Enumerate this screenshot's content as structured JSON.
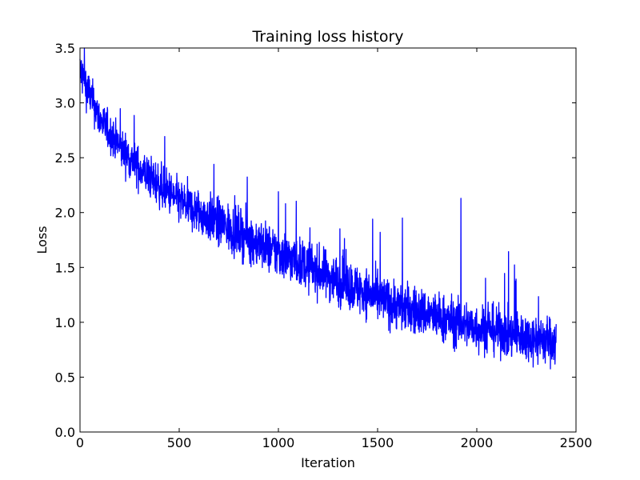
{
  "chart_data": {
    "type": "line",
    "title": "Training loss history",
    "xlabel": "Iteration",
    "ylabel": "Loss",
    "xlim": [
      0,
      2500
    ],
    "ylim": [
      0.0,
      3.5
    ],
    "x_ticks": [
      "0",
      "500",
      "1000",
      "1500",
      "2000",
      "2500"
    ],
    "y_ticks": [
      "0.0",
      "0.5",
      "1.0",
      "1.5",
      "2.0",
      "2.5",
      "3.0",
      "3.5"
    ],
    "grid": false,
    "legend": "none",
    "series": [
      {
        "color": "#0000ff",
        "iterations": 2400,
        "x": [
          0,
          100,
          200,
          300,
          400,
          500,
          600,
          700,
          800,
          900,
          1000,
          1100,
          1200,
          1300,
          1400,
          1500,
          1600,
          1700,
          1800,
          1900,
          2000,
          2100,
          2200,
          2300,
          2400
        ],
        "values": [
          3.3,
          2.85,
          2.6,
          2.4,
          2.25,
          2.1,
          2.0,
          1.9,
          1.82,
          1.72,
          1.63,
          1.55,
          1.47,
          1.38,
          1.3,
          1.22,
          1.15,
          1.1,
          1.05,
          1.0,
          0.95,
          0.92,
          0.88,
          0.85,
          0.82
        ],
        "noise_band": [
          0.18,
          0.16,
          0.16,
          0.17,
          0.18,
          0.18,
          0.19,
          0.2,
          0.2,
          0.2,
          0.2,
          0.2,
          0.2,
          0.2,
          0.2,
          0.2,
          0.2,
          0.2,
          0.2,
          0.2,
          0.2,
          0.2,
          0.2,
          0.2,
          0.2
        ],
        "spikes": [
          {
            "x": 1920,
            "y": 2.13
          },
          {
            "x": 1000,
            "y": 2.19
          },
          {
            "x": 675,
            "y": 2.44
          },
          {
            "x": 1625,
            "y": 1.95
          },
          {
            "x": 1475,
            "y": 1.94
          }
        ]
      }
    ]
  }
}
